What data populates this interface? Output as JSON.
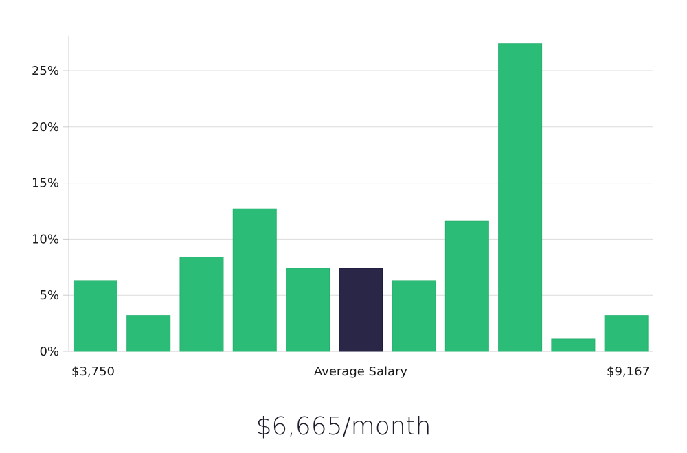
{
  "chart_data": {
    "type": "bar",
    "ylim": [
      0,
      28
    ],
    "y_ticks": [
      {
        "value": 0,
        "label": "0%"
      },
      {
        "value": 5,
        "label": "5%"
      },
      {
        "value": 10,
        "label": "10%"
      },
      {
        "value": 15,
        "label": "15%"
      },
      {
        "value": 20,
        "label": "20%"
      },
      {
        "value": 25,
        "label": "25%"
      }
    ],
    "values": [
      6.3,
      3.2,
      8.4,
      12.7,
      7.4,
      7.4,
      6.3,
      11.6,
      27.4,
      1.1,
      3.2
    ],
    "highlight_index": 5,
    "x_labels": {
      "left": "$3,750",
      "center": "Average Salary",
      "right": "$9,167"
    },
    "grid": true,
    "colors": {
      "bar": "#2bbd77",
      "highlight": "#2a2648",
      "grid": "#dcdcdc",
      "axis": "#cccccc"
    }
  },
  "summary": {
    "salary": "$6,665/month"
  }
}
